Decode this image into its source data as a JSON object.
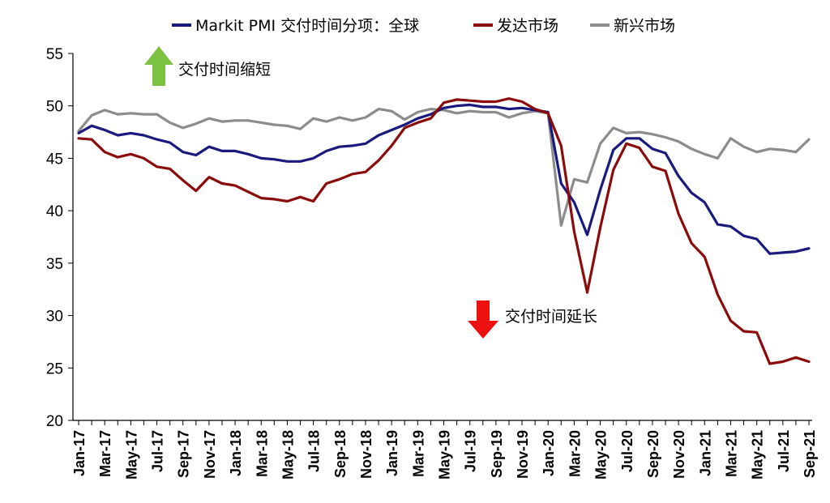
{
  "chart_data": {
    "type": "line",
    "ylim": [
      20,
      55
    ],
    "yticks": [
      20,
      25,
      30,
      35,
      40,
      45,
      50,
      55
    ],
    "grid": false,
    "legend_position": "top",
    "x": [
      "Jan-17",
      "Feb-17",
      "Mar-17",
      "Apr-17",
      "May-17",
      "Jun-17",
      "Jul-17",
      "Aug-17",
      "Sep-17",
      "Oct-17",
      "Nov-17",
      "Dec-17",
      "Jan-18",
      "Feb-18",
      "Mar-18",
      "Apr-18",
      "May-18",
      "Jun-18",
      "Jul-18",
      "Aug-18",
      "Sep-18",
      "Oct-18",
      "Nov-18",
      "Dec-18",
      "Jan-19",
      "Feb-19",
      "Mar-19",
      "Apr-19",
      "May-19",
      "Jun-19",
      "Jul-19",
      "Aug-19",
      "Sep-19",
      "Oct-19",
      "Nov-19",
      "Dec-19",
      "Jan-20",
      "Feb-20",
      "Mar-20",
      "Apr-20",
      "May-20",
      "Jun-20",
      "Jul-20",
      "Aug-20",
      "Sep-20",
      "Oct-20",
      "Nov-20",
      "Dec-20",
      "Jan-21",
      "Feb-21",
      "Mar-21",
      "Apr-21",
      "May-21",
      "Jun-21",
      "Jul-21",
      "Aug-21",
      "Sep-21"
    ],
    "x_tick_labels": [
      "Jan-17",
      "Mar-17",
      "May-17",
      "Jul-17",
      "Sep-17",
      "Nov-17",
      "Jan-18",
      "Mar-18",
      "May-18",
      "Jul-18",
      "Sep-18",
      "Nov-18",
      "Jan-19",
      "Mar-19",
      "May-19",
      "Jul-19",
      "Sep-19",
      "Nov-19",
      "Jan-20",
      "Mar-20",
      "May-20",
      "Jul-20",
      "Sep-20",
      "Nov-20",
      "Jan-21",
      "Mar-21",
      "May-21",
      "Jul-21",
      "Sep-21"
    ],
    "series": [
      {
        "name": "Markit PMI 交付时间分项：全球",
        "color": "#1a1a7e",
        "values": [
          47.4,
          48.1,
          47.7,
          47.2,
          47.4,
          47.2,
          46.8,
          46.5,
          45.6,
          45.3,
          46.1,
          45.7,
          45.7,
          45.4,
          45.0,
          44.9,
          44.7,
          44.7,
          45.0,
          45.7,
          46.1,
          46.2,
          46.4,
          47.2,
          47.7,
          48.2,
          48.8,
          49.2,
          49.8,
          50.0,
          50.1,
          49.9,
          49.9,
          49.7,
          49.8,
          49.6,
          49.4,
          42.6,
          40.8,
          37.7,
          42.0,
          45.8,
          46.9,
          46.9,
          45.9,
          45.5,
          43.3,
          41.7,
          40.8,
          38.7,
          38.5,
          37.6,
          37.3,
          35.9,
          36.0,
          36.1,
          36.4
        ]
      },
      {
        "name": "发达市场",
        "color": "#8b0a0a",
        "values": [
          46.9,
          46.8,
          45.6,
          45.1,
          45.4,
          45.0,
          44.2,
          44.0,
          42.9,
          41.9,
          43.2,
          42.6,
          42.4,
          41.8,
          41.2,
          41.1,
          40.9,
          41.3,
          40.9,
          42.6,
          43.0,
          43.5,
          43.7,
          44.8,
          46.2,
          47.9,
          48.4,
          48.8,
          50.3,
          50.6,
          50.5,
          50.4,
          50.4,
          50.7,
          50.4,
          49.7,
          49.3,
          46.2,
          38.0,
          32.2,
          38.4,
          43.9,
          46.4,
          46.0,
          44.2,
          43.8,
          39.7,
          36.9,
          35.6,
          32.0,
          29.5,
          28.5,
          28.4,
          25.4,
          25.6,
          26.0,
          25.6
        ]
      },
      {
        "name": "新兴市场",
        "color": "#8c8c8c",
        "values": [
          47.6,
          49.1,
          49.6,
          49.2,
          49.3,
          49.2,
          49.2,
          48.4,
          47.9,
          48.3,
          48.8,
          48.5,
          48.6,
          48.6,
          48.4,
          48.2,
          48.1,
          47.8,
          48.8,
          48.5,
          48.9,
          48.6,
          48.9,
          49.7,
          49.5,
          48.7,
          49.4,
          49.7,
          49.6,
          49.3,
          49.5,
          49.4,
          49.4,
          48.9,
          49.3,
          49.5,
          49.3,
          38.6,
          43.0,
          42.7,
          46.4,
          47.9,
          47.4,
          47.5,
          47.3,
          47.0,
          46.6,
          45.9,
          45.4,
          45.0,
          46.9,
          46.1,
          45.6,
          45.9,
          45.8,
          45.6,
          46.8
        ]
      }
    ],
    "annotations": [
      {
        "text": "交付时间缩短",
        "direction": "up",
        "color": "#7dc142"
      },
      {
        "text": "交付时间延长",
        "direction": "down",
        "color": "#ee1111"
      }
    ]
  }
}
